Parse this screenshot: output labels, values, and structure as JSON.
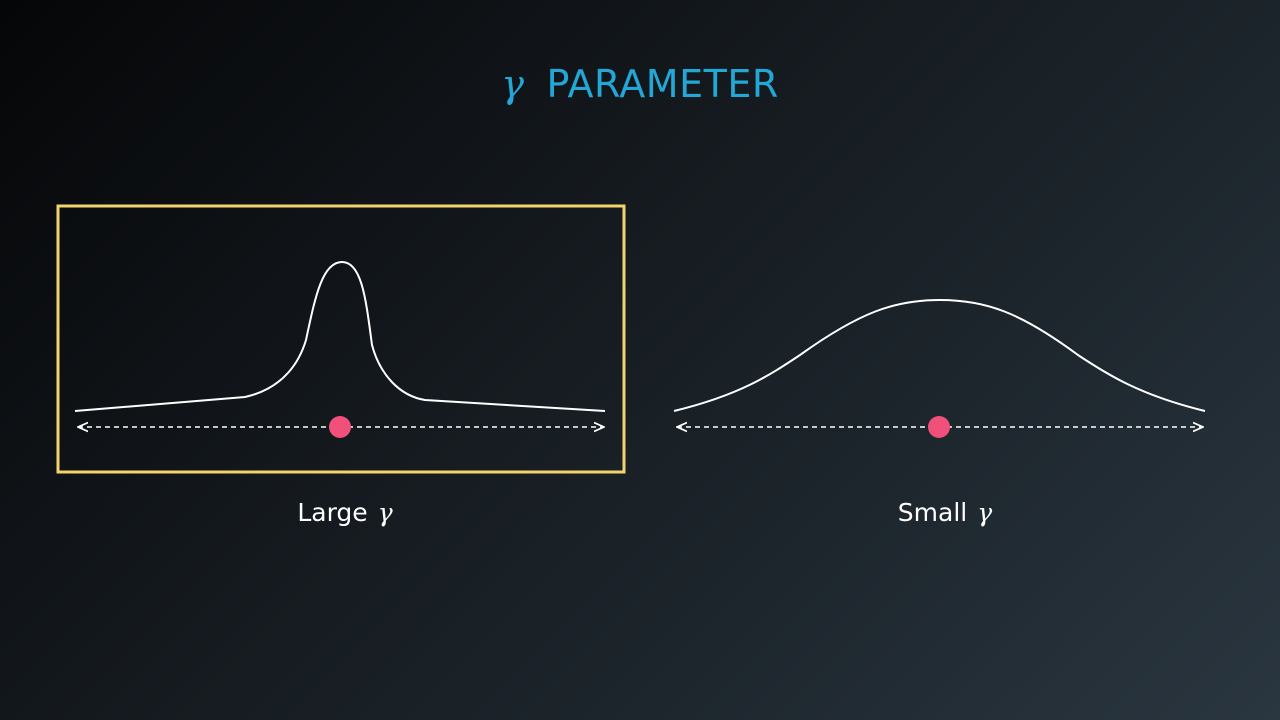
{
  "title": {
    "symbol": "γ",
    "text": "PARAMETER"
  },
  "panels": {
    "large": {
      "label": "Large",
      "symbol": "γ",
      "highlighted": true
    },
    "small": {
      "label": "Small",
      "symbol": "γ",
      "highlighted": false
    }
  },
  "colors": {
    "title": "#22a7d6",
    "highlight_box": "#f3d36b",
    "point": "#f0507a",
    "curve": "#ffffff"
  }
}
